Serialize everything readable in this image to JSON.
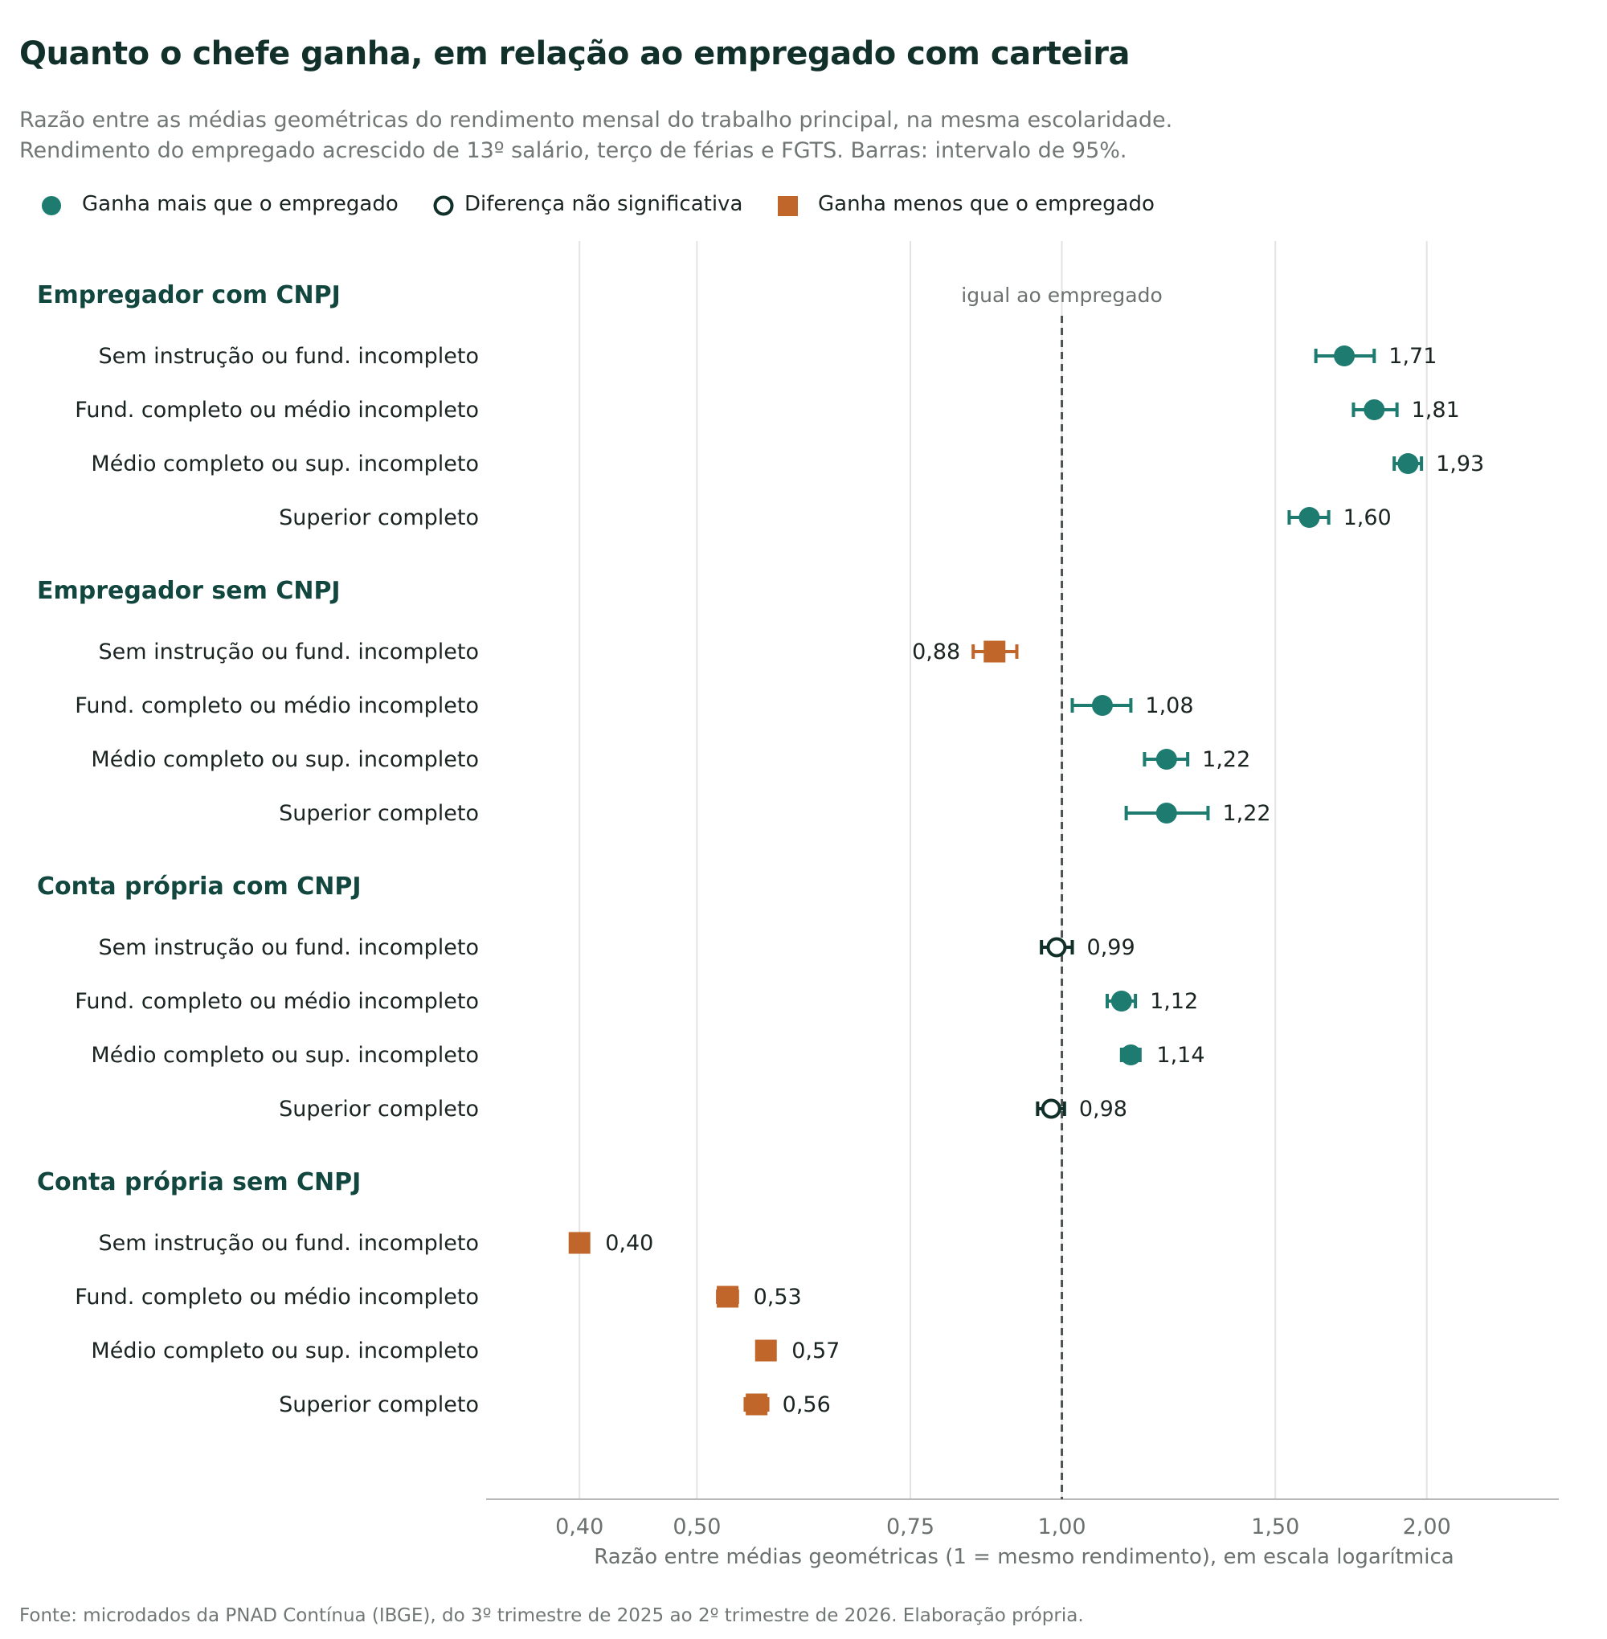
{
  "title": "Quanto o chefe ganha, em relação ao empregado com carteira",
  "subtitle_lines": [
    "Razão entre as médias geométricas do rendimento mensal do trabalho principal, na mesma escolaridade.",
    "Rendimento do empregado acrescido de 13º salário, terço de férias e FGTS. Barras: intervalo de 95%."
  ],
  "legend": [
    {
      "label": "Ganha mais que o empregado",
      "marker": "filled-circle",
      "color": "#1e7b70"
    },
    {
      "label": "Diferença não significativa",
      "marker": "hollow-circle",
      "color": "#12302a"
    },
    {
      "label": "Ganha menos que o empregado",
      "marker": "square",
      "color": "#c0662a"
    }
  ],
  "source": "Fonte: microdados da PNAD Contínua (IBGE), do 3º trimestre de 2025 ao 2º trimestre de 2026. Elaboração própria.",
  "chart_data": {
    "type": "scatter",
    "variant": "dot-with-error-bars",
    "xlabel": "Razão entre médias geométricas (1 = mesmo rendimento), em escala logarítmica",
    "x_scale": "log",
    "xlim": [
      0.335,
      2.57
    ],
    "xticks": [
      0.4,
      0.5,
      0.75,
      1.0,
      1.5,
      2.0
    ],
    "xtick_labels": [
      "0,40",
      "0,50",
      "0,75",
      "1,00",
      "1,50",
      "2,00"
    ],
    "grid": "vertical",
    "reference_line": {
      "x": 1.0,
      "label": "igual ao empregado",
      "style": "dashed"
    },
    "colors": {
      "higher": "#1e7b70",
      "not_significant": "#12302a",
      "lower": "#c0662a",
      "group_label": "#12473f"
    },
    "groups": [
      {
        "name": "Empregador com CNPJ",
        "rows": [
          {
            "label": "Sem instrução ou fund. incompleto",
            "value": 1.71,
            "value_label": "1,71",
            "ci": [
              1.62,
              1.81
            ],
            "status": "higher"
          },
          {
            "label": "Fund. completo ou médio incompleto",
            "value": 1.81,
            "value_label": "1,81",
            "ci": [
              1.74,
              1.89
            ],
            "status": "higher"
          },
          {
            "label": "Médio completo ou sup. incompleto",
            "value": 1.93,
            "value_label": "1,93",
            "ci": [
              1.88,
              1.98
            ],
            "status": "higher"
          },
          {
            "label": "Superior completo",
            "value": 1.6,
            "value_label": "1,60",
            "ci": [
              1.54,
              1.66
            ],
            "status": "higher"
          }
        ]
      },
      {
        "name": "Empregador sem CNPJ",
        "rows": [
          {
            "label": "Sem instrução ou fund. incompleto",
            "value": 0.88,
            "value_label": "0,88",
            "ci": [
              0.845,
              0.918
            ],
            "status": "lower"
          },
          {
            "label": "Fund. completo ou médio incompleto",
            "value": 1.08,
            "value_label": "1,08",
            "ci": [
              1.02,
              1.14
            ],
            "status": "higher"
          },
          {
            "label": "Médio completo ou sup. incompleto",
            "value": 1.22,
            "value_label": "1,22",
            "ci": [
              1.17,
              1.27
            ],
            "status": "higher"
          },
          {
            "label": "Superior completo",
            "value": 1.22,
            "value_label": "1,22",
            "ci": [
              1.13,
              1.32
            ],
            "status": "higher"
          }
        ]
      },
      {
        "name": "Conta própria com CNPJ",
        "rows": [
          {
            "label": "Sem instrução ou fund. incompleto",
            "value": 0.99,
            "value_label": "0,99",
            "ci": [
              0.962,
              1.02
            ],
            "status": "not_significant"
          },
          {
            "label": "Fund. completo ou médio incompleto",
            "value": 1.12,
            "value_label": "1,12",
            "ci": [
              1.09,
              1.15
            ],
            "status": "higher"
          },
          {
            "label": "Médio completo ou sup. incompleto",
            "value": 1.14,
            "value_label": "1,14",
            "ci": [
              1.12,
              1.16
            ],
            "status": "higher"
          },
          {
            "label": "Superior completo",
            "value": 0.98,
            "value_label": "0,98",
            "ci": [
              0.955,
              1.005
            ],
            "status": "not_significant"
          }
        ]
      },
      {
        "name": "Conta própria sem CNPJ",
        "rows": [
          {
            "label": "Sem instrução ou fund. incompleto",
            "value": 0.4,
            "value_label": "0,40",
            "ci": [
              0.395,
              0.405
            ],
            "status": "lower"
          },
          {
            "label": "Fund. completo ou médio incompleto",
            "value": 0.53,
            "value_label": "0,53",
            "ci": [
              0.52,
              0.54
            ],
            "status": "lower"
          },
          {
            "label": "Médio completo ou sup. incompleto",
            "value": 0.57,
            "value_label": "0,57",
            "ci": [
              0.565,
              0.575
            ],
            "status": "lower"
          },
          {
            "label": "Superior completo",
            "value": 0.56,
            "value_label": "0,56",
            "ci": [
              0.548,
              0.572
            ],
            "status": "lower"
          }
        ]
      }
    ]
  }
}
